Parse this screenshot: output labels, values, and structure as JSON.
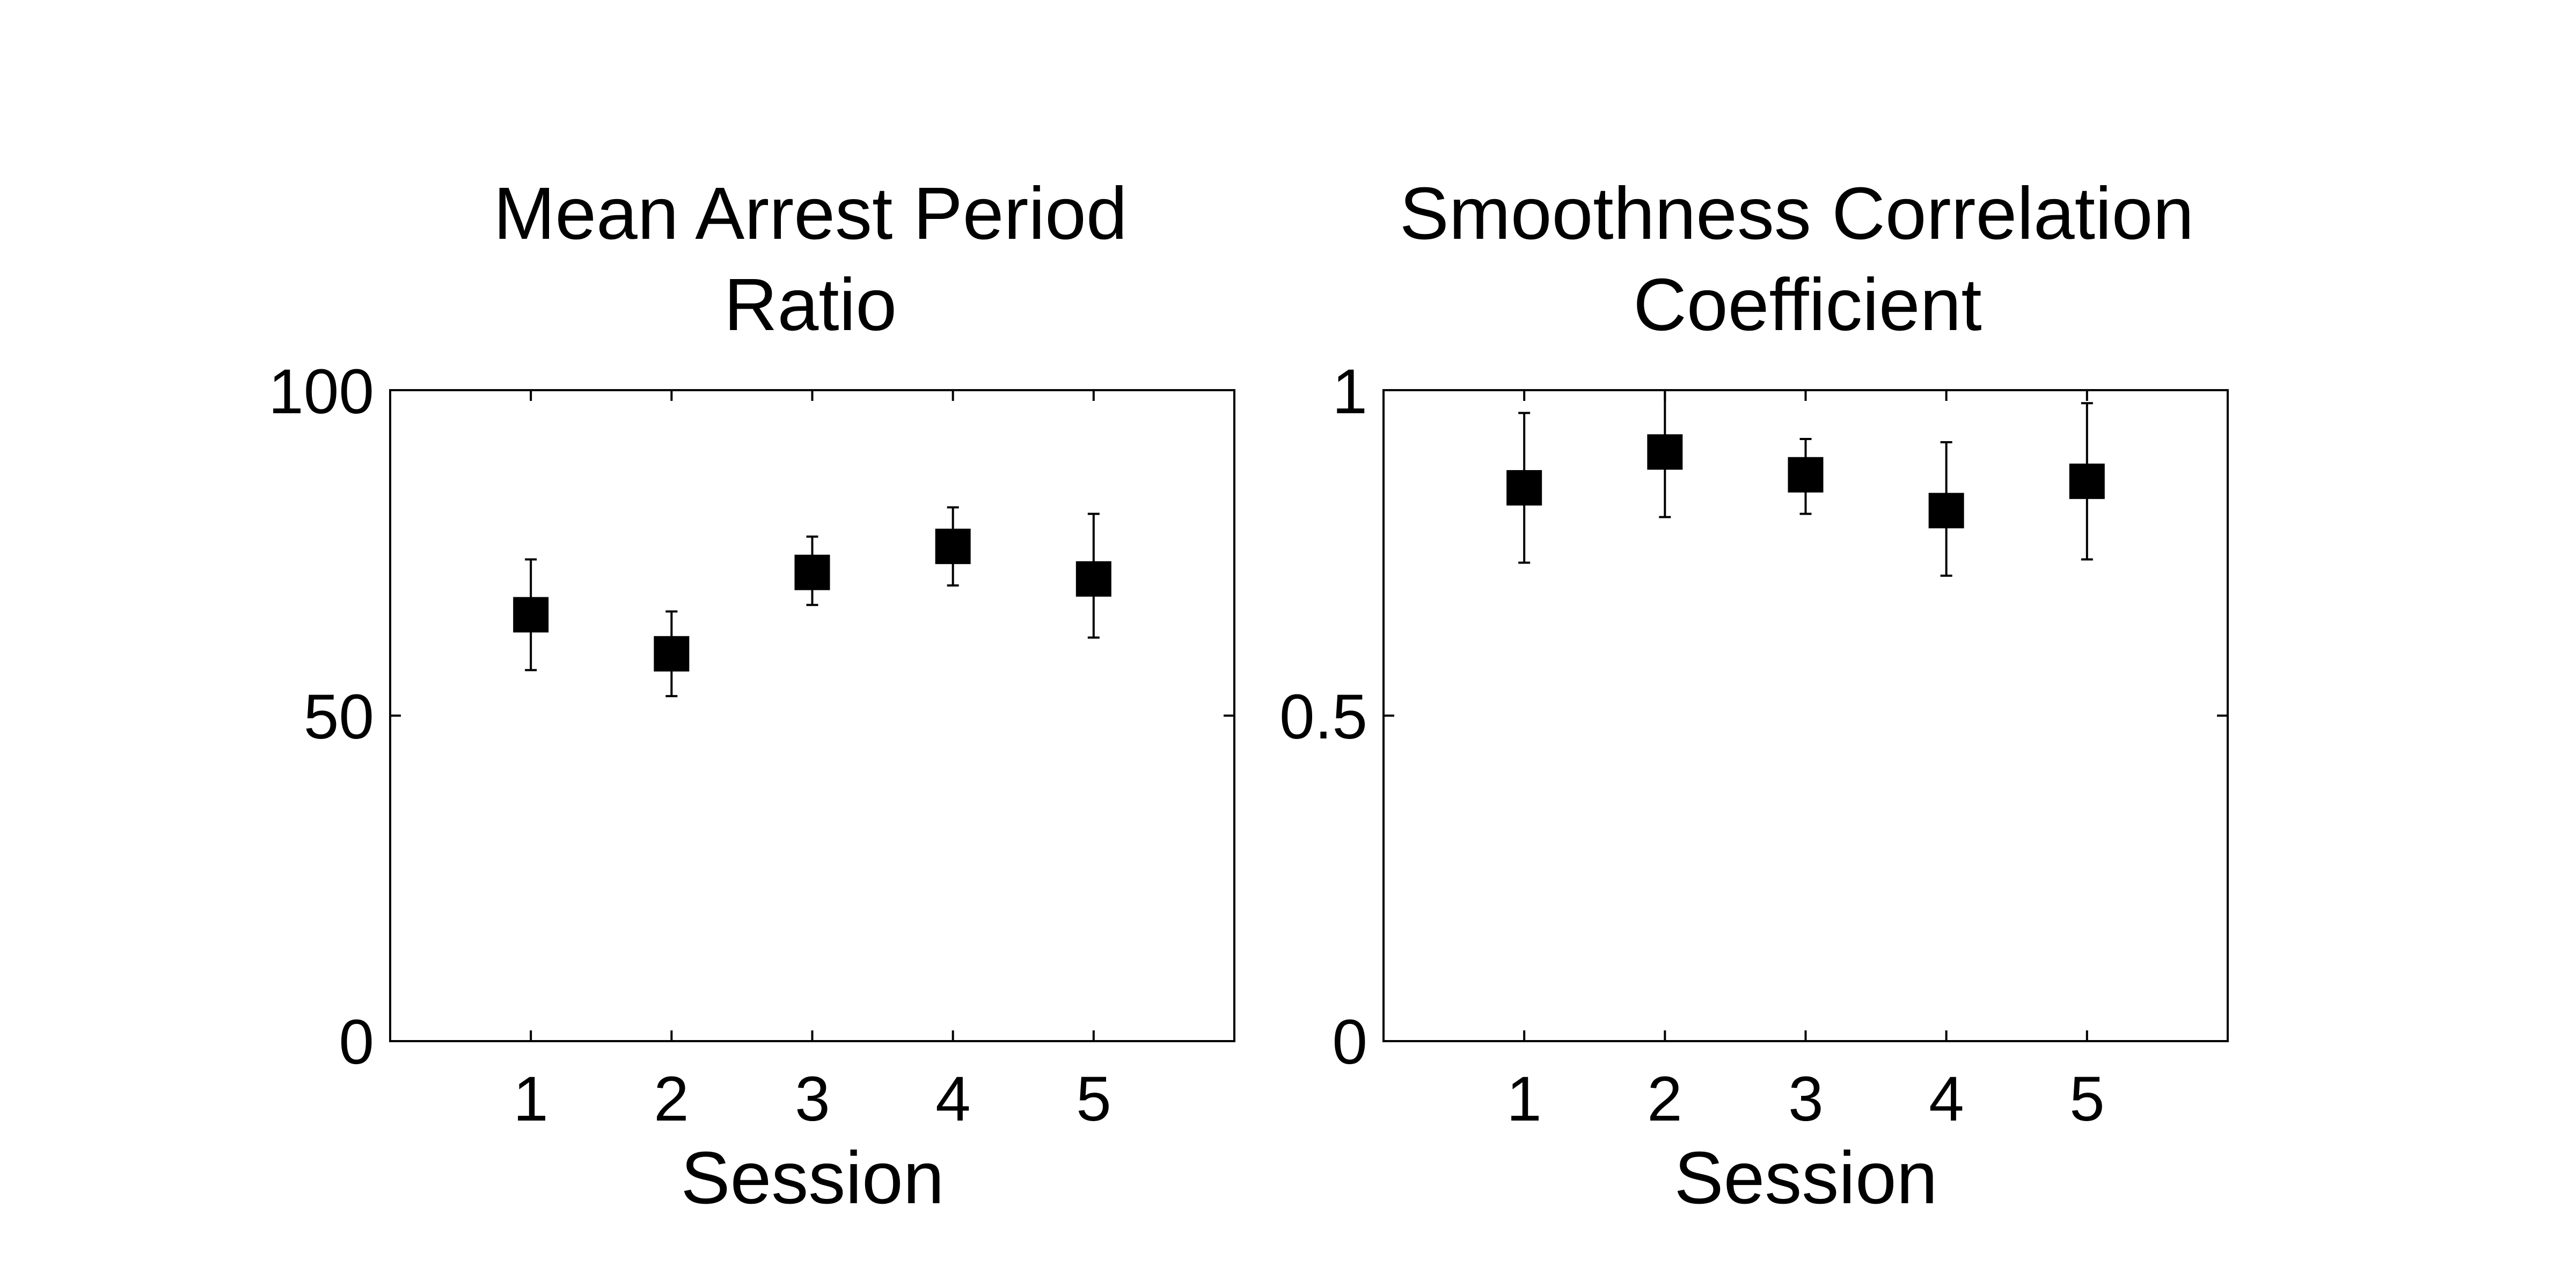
{
  "chart_data": [
    {
      "type": "scatter",
      "title_lines": [
        "Mean Arrest Period",
        "Ratio"
      ],
      "xlabel": "Session",
      "ylabel": "",
      "xlim": [
        0,
        6
      ],
      "ylim": [
        0,
        100
      ],
      "x_ticks": [
        "1",
        "2",
        "3",
        "4",
        "5"
      ],
      "y_ticks": [
        "0",
        "50",
        "100"
      ],
      "grid": false,
      "marker": "square",
      "marker_color": "#000000",
      "series": [
        {
          "x": [
            1,
            2,
            3,
            4,
            5
          ],
          "y": [
            65.5,
            59.5,
            72,
            76,
            71
          ],
          "err_low": [
            57,
            53,
            67,
            70,
            62
          ],
          "err_high": [
            74,
            66,
            77.5,
            82,
            81
          ]
        }
      ]
    },
    {
      "type": "scatter",
      "title_lines": [
        "Smoothness Correlation",
        "Coefficient"
      ],
      "xlabel": "Session",
      "ylabel": "",
      "xlim": [
        0,
        6
      ],
      "ylim": [
        0,
        1
      ],
      "x_ticks": [
        "1",
        "2",
        "3",
        "4",
        "5"
      ],
      "y_ticks": [
        "0",
        "0.5",
        "1"
      ],
      "grid": false,
      "marker": "square",
      "marker_color": "#000000",
      "series": [
        {
          "x": [
            1,
            2,
            3,
            4,
            5
          ],
          "y": [
            0.85,
            0.905,
            0.87,
            0.815,
            0.86
          ],
          "err_low": [
            0.735,
            0.805,
            0.81,
            0.715,
            0.74
          ],
          "err_high": [
            0.965,
            1.0,
            0.925,
            0.92,
            0.98
          ]
        }
      ]
    }
  ]
}
